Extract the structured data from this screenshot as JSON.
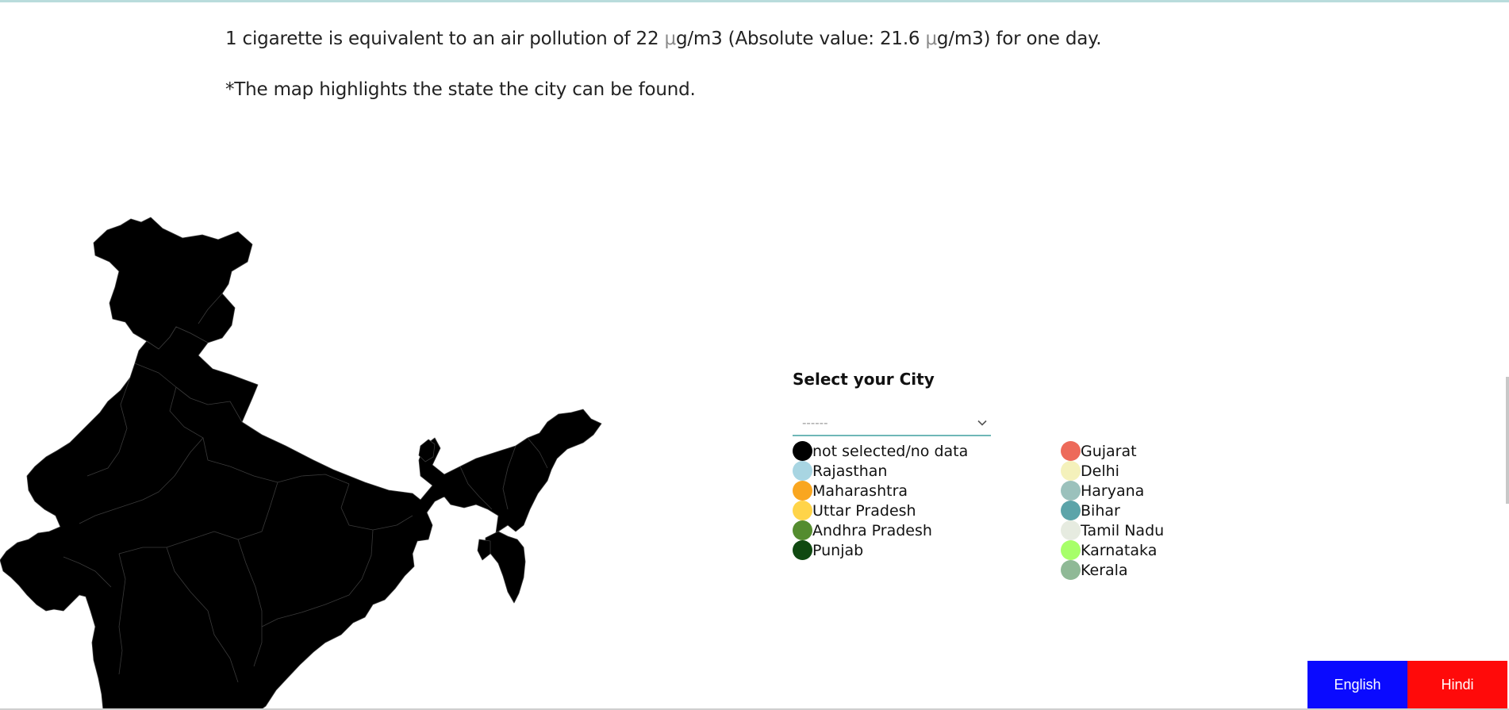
{
  "intro": {
    "line1_a": "1 cigarette is equivalent to an air pollution of 22 ",
    "line1_unit1": "μ",
    "line1_b": "g/m3 (Absolute value: 21.6 ",
    "line1_unit2": "μ",
    "line1_c": "g/m3) for one day.",
    "note": "*The map highlights the state the city can be found."
  },
  "city_selector": {
    "title": "Select your City",
    "selected": "------"
  },
  "legend": {
    "column_a": [
      {
        "label": "not selected/no data",
        "color": "#000000"
      },
      {
        "label": "Rajasthan",
        "color": "#a8d5e2"
      },
      {
        "label": "Maharashtra",
        "color": "#f9a620"
      },
      {
        "label": "Uttar Pradesh",
        "color": "#ffd449"
      },
      {
        "label": "Andhra Pradesh",
        "color": "#548c2f"
      },
      {
        "label": "Punjab",
        "color": "#104911"
      }
    ],
    "column_b": [
      {
        "label": "Gujarat",
        "color": "#ed6a5a"
      },
      {
        "label": "Delhi",
        "color": "#f4f1bb"
      },
      {
        "label": "Haryana",
        "color": "#9bc1bc"
      },
      {
        "label": "Bihar",
        "color": "#5ca4a9"
      },
      {
        "label": "Tamil Nadu",
        "color": "#e6ebe0"
      },
      {
        "label": "Karnataka",
        "color": "#a7ff69"
      },
      {
        "label": "Kerala",
        "color": "#8fb996"
      }
    ]
  },
  "map": {
    "highlighted_state": "",
    "fill_color": "#000000",
    "border_color": "#3a3a3a"
  },
  "language_buttons": {
    "english": "English",
    "hindi": "Hindi"
  }
}
